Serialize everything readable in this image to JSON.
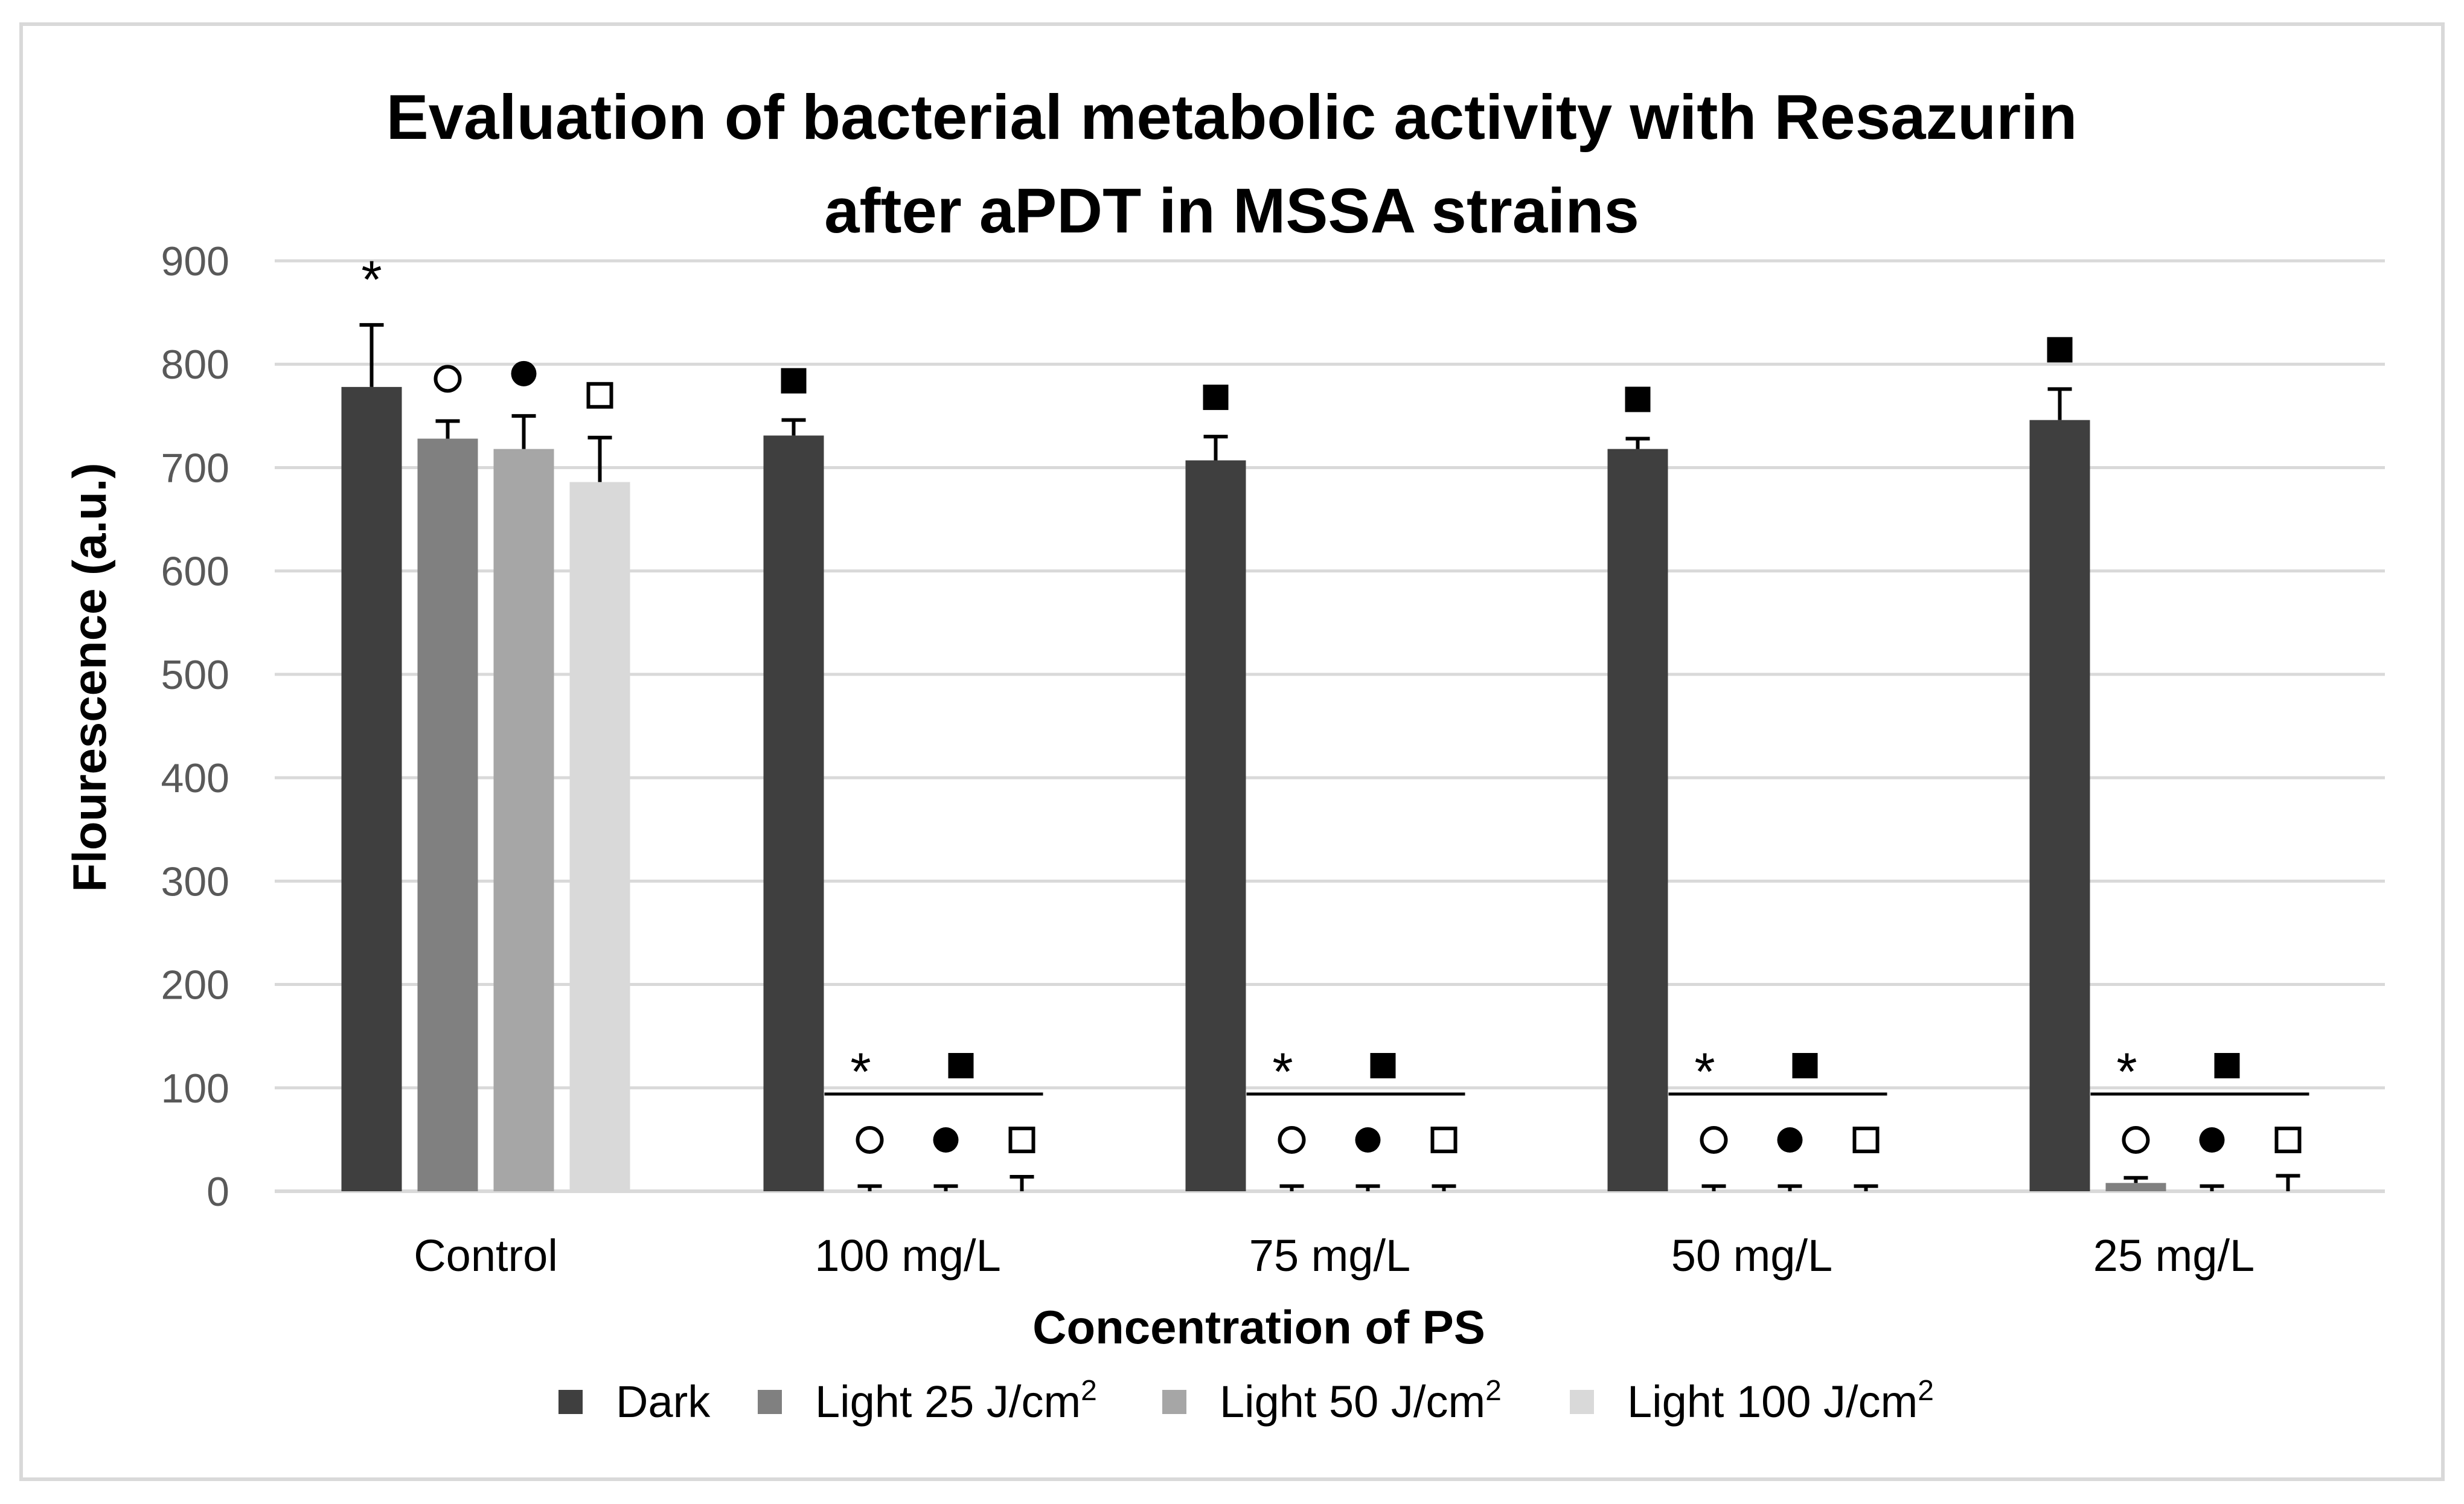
{
  "chart_data": {
    "type": "bar",
    "title_lines": [
      "Evaluation of bacterial metabolic activity with Resazurin",
      "after aPDT in MSSA strains"
    ],
    "xlabel": "Concentration of PS",
    "ylabel": "Flourescence (a.u.)",
    "ylim": [
      0,
      900
    ],
    "yticks": [
      0,
      100,
      200,
      300,
      400,
      500,
      600,
      700,
      800,
      900
    ],
    "grid": true,
    "legend_position": "bottom",
    "categories": [
      "Control",
      "100 mg/L",
      "75 mg/L",
      "50 mg/L",
      "25 mg/L"
    ],
    "series": [
      {
        "name": "Dark",
        "color": "#3f3f3f",
        "values": [
          778,
          731,
          707,
          718,
          746
        ],
        "errors": [
          60,
          15,
          23,
          10,
          30
        ]
      },
      {
        "name": "Light 25 J/cm",
        "sup": "2",
        "color": "#808080",
        "values": [
          728,
          0,
          0,
          0,
          8
        ],
        "errors": [
          17,
          5,
          5,
          5,
          5
        ]
      },
      {
        "name": "Light 50 J/cm",
        "sup": "2",
        "color": "#a6a6a6",
        "values": [
          718,
          0,
          0,
          0,
          0
        ],
        "errors": [
          32,
          5,
          5,
          5,
          5
        ]
      },
      {
        "name": "Light 100 J/cm",
        "sup": "2",
        "color": "#d9d9d9",
        "values": [
          686,
          0,
          0,
          0,
          0
        ],
        "errors": [
          43,
          14,
          5,
          5,
          15
        ]
      }
    ],
    "significance": {
      "control": [
        {
          "series": 0,
          "symbol": "asterisk",
          "text": "*"
        },
        {
          "series": 1,
          "symbol": "open-circle"
        },
        {
          "series": 2,
          "symbol": "filled-circle"
        },
        {
          "series": 3,
          "symbol": "open-square"
        }
      ],
      "treated": [
        {
          "symbol": "filled-square-on-dark"
        },
        {
          "symbol": "asterisk-over-light",
          "text": "*"
        },
        {
          "symbol": "filled-square-over-light"
        },
        {
          "symbol": "open-circle"
        },
        {
          "symbol": "filled-circle"
        },
        {
          "symbol": "open-square"
        }
      ]
    }
  },
  "colors": {
    "grid": "#d9d9d9",
    "axis_text": "#595959",
    "title": "#000000",
    "frame": "#d9d9d9"
  }
}
